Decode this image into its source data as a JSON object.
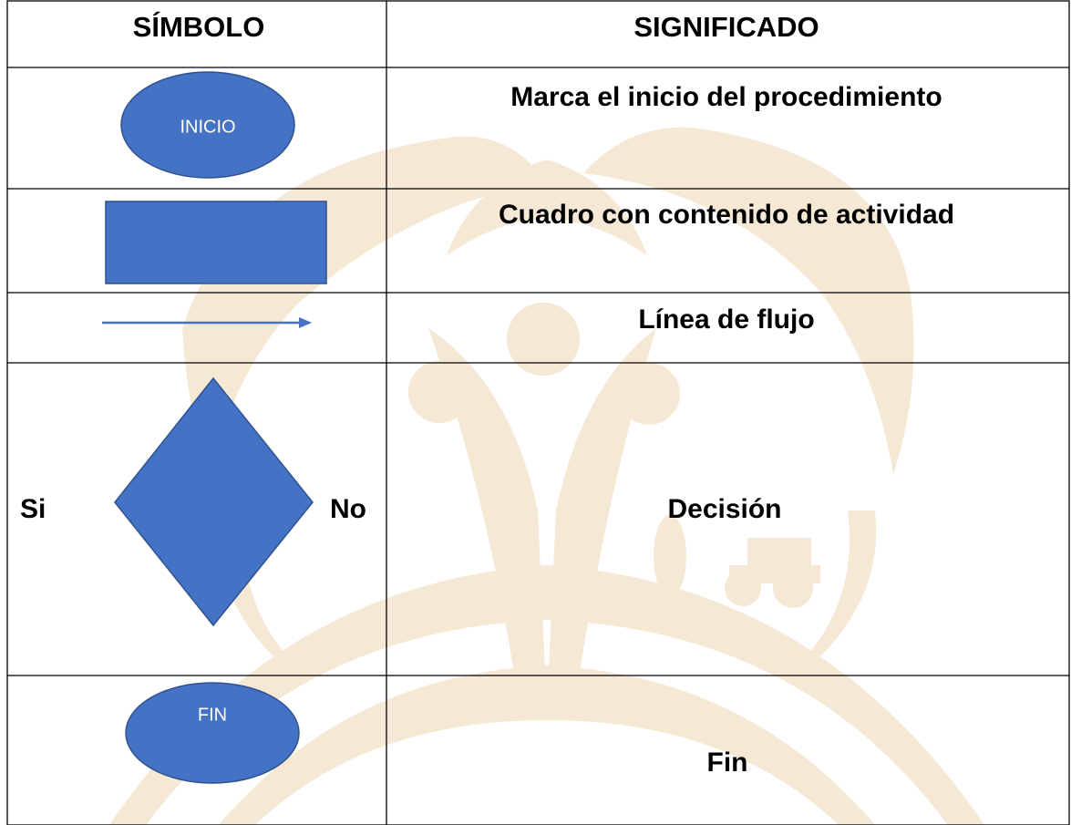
{
  "table": {
    "headers": [
      "SÍMBOLO",
      "SIGNIFICADO"
    ],
    "rows": [
      {
        "symbol": "INICIO",
        "meaning": "Marca el inicio del procedimiento"
      },
      {
        "meaning": "Cuadro con contenido de actividad"
      },
      {
        "meaning": "Línea de flujo"
      },
      {
        "left": "Si",
        "right": "No",
        "meaning": "Decisión"
      },
      {
        "symbol": "FIN",
        "meaning": "Fin"
      }
    ]
  }
}
